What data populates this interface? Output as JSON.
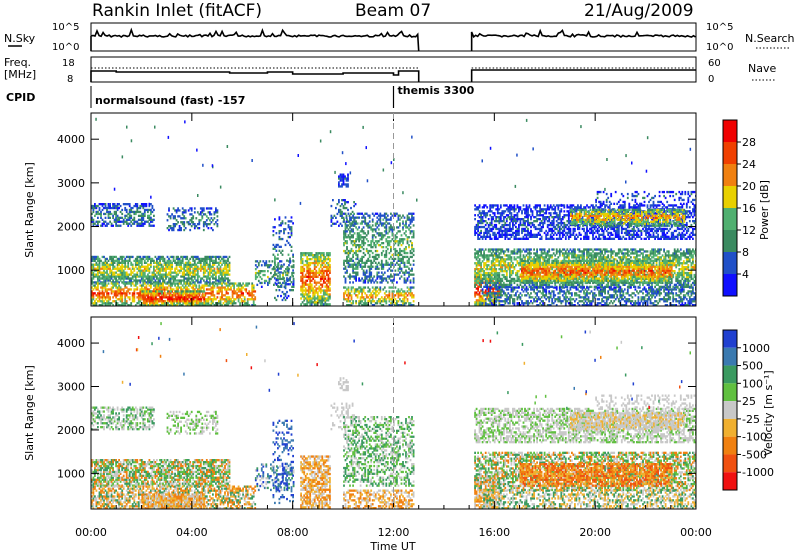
{
  "header": {
    "title": "Rankin Inlet (fitACF)",
    "beam": "Beam 07",
    "date": "21/Aug/2009"
  },
  "top_panel": {
    "left_label": "N.Sky",
    "right_label": "N.Search",
    "left_ticks": [
      "10^5",
      "10^0"
    ],
    "right_ticks": [
      "10^5",
      "10^0"
    ]
  },
  "freq_panel": {
    "left_label_1": "Freq.",
    "left_label_2": "[MHz]",
    "right_label": "Nave",
    "left_ticks": [
      "18",
      "8"
    ],
    "right_ticks": [
      "60",
      "0"
    ]
  },
  "cpid": {
    "label": "CPID",
    "mode_1": "normalsound (fast) -157",
    "mode_2": "themis 3300",
    "switch_hour": 12
  },
  "chart_data": [
    {
      "type": "heatmap",
      "name": "power",
      "xlabel": "Time UT",
      "ylabel": "Slant Range [km]",
      "xlim": [
        0,
        24
      ],
      "ylim": [
        180,
        4600
      ],
      "x_ticks": [
        "00:00",
        "04:00",
        "08:00",
        "12:00",
        "16:00",
        "20:00",
        "00:00"
      ],
      "x_tick_hours": [
        0,
        4,
        8,
        12,
        16,
        20,
        24
      ],
      "y_ticks": [
        1000,
        2000,
        3000,
        4000
      ],
      "data_gap_hours": [
        13.0,
        15.1
      ],
      "colorbar": {
        "label": "Power [dB]",
        "ticks": [
          "4",
          "8",
          "12",
          "16",
          "20",
          "24",
          "28"
        ],
        "colors": [
          "#1010ff",
          "#2050c8",
          "#3a8a60",
          "#50b070",
          "#e8d000",
          "#f08010",
          "#f04000",
          "#f00000"
        ]
      }
    },
    {
      "type": "heatmap",
      "name": "velocity",
      "xlabel": "Time UT",
      "ylabel": "Slant Range [km]",
      "xlim": [
        0,
        24
      ],
      "ylim": [
        180,
        4600
      ],
      "x_ticks": [
        "00:00",
        "04:00",
        "08:00",
        "12:00",
        "16:00",
        "20:00",
        "00:00"
      ],
      "x_tick_hours": [
        0,
        4,
        8,
        12,
        16,
        20,
        24
      ],
      "y_ticks": [
        1000,
        2000,
        3000,
        4000
      ],
      "data_gap_hours": [
        13.0,
        15.1
      ],
      "colorbar": {
        "label": "Velocity [m s⁻¹]",
        "ticks": [
          "1000",
          "500",
          "100",
          "25",
          "-25",
          "-100",
          "-500",
          "-1000"
        ],
        "colors": [
          "#2040d0",
          "#3a7ab0",
          "#3a9a60",
          "#60c040",
          "#c8c8c8",
          "#f0b030",
          "#f08010",
          "#f05010",
          "#f01010"
        ]
      }
    }
  ]
}
